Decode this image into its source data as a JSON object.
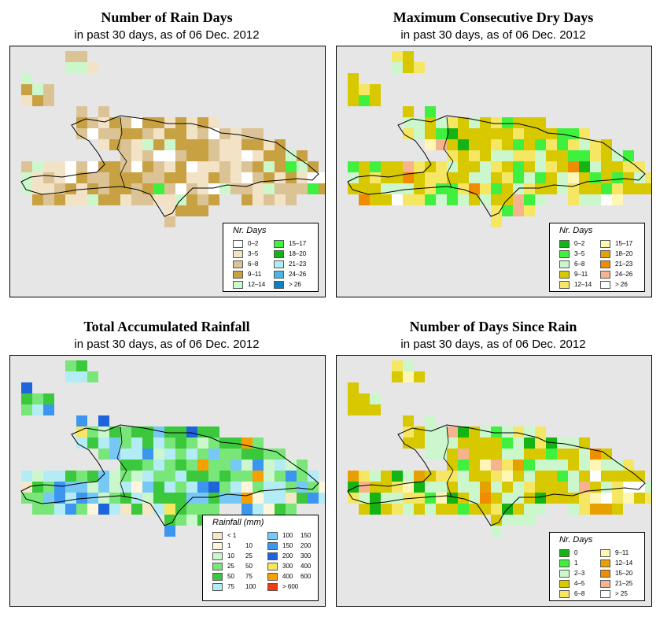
{
  "panels": [
    {
      "id": "rain_days",
      "title": "Number of Rain Days",
      "subtitle": "in past 30 days, as of  06 Dec. 2012",
      "legend_title": "Nr. Days",
      "legend": [
        {
          "label": "0–2",
          "color": "#ffffff"
        },
        {
          "label": "3–5",
          "color": "#f3e3c6"
        },
        {
          "label": "6–8",
          "color": "#dcc396"
        },
        {
          "label": "9–11",
          "color": "#c8a242"
        },
        {
          "label": "12–14",
          "color": "#ccf7cc"
        },
        {
          "label": "15–17",
          "color": "#3ff03f"
        },
        {
          "label": "18–20",
          "color": "#14b414"
        },
        {
          "label": "21–23",
          "color": "#b4ecf6"
        },
        {
          "label": "24–26",
          "color": "#4bb6e6"
        },
        {
          "label": "> 26",
          "color": "#0a82c8"
        }
      ]
    },
    {
      "id": "max_dry",
      "title": "Maximum Consecutive Dry Days",
      "subtitle": "in past 30 days, as of  06 Dec. 2012",
      "legend_title": "Nr. Days",
      "legend": [
        {
          "label": "0–2",
          "color": "#14b414"
        },
        {
          "label": "3–5",
          "color": "#3ff03f"
        },
        {
          "label": "6–8",
          "color": "#ccf7cc"
        },
        {
          "label": "9–11",
          "color": "#d7c800"
        },
        {
          "label": "12–14",
          "color": "#f5e664"
        },
        {
          "label": "15–17",
          "color": "#fff5b4"
        },
        {
          "label": "18–20",
          "color": "#e6a000"
        },
        {
          "label": "21–23",
          "color": "#f08c00"
        },
        {
          "label": "24–26",
          "color": "#f5b48c"
        },
        {
          "label": "> 26",
          "color": "#ffffff"
        }
      ]
    },
    {
      "id": "total_rain",
      "title": "Total Accumulated Rainfall",
      "subtitle": "in past 30 days, as of  06 Dec. 2012",
      "legend_title": "Rainfall (mm)",
      "legend": [
        {
          "label": "< 1",
          "color": "#f5e6c8"
        },
        {
          "label": "1",
          "label2": "10",
          "color": "#fff5dc"
        },
        {
          "label": "10",
          "label2": "25",
          "color": "#ccf7cc"
        },
        {
          "label": "25",
          "label2": "50",
          "color": "#78e678"
        },
        {
          "label": "50",
          "label2": "75",
          "color": "#3cc83c"
        },
        {
          "label": "75",
          "label2": "100",
          "color": "#b4ecf6"
        },
        {
          "label": "100",
          "label2": "150",
          "color": "#78c8f5"
        },
        {
          "label": "150",
          "label2": "200",
          "color": "#3c96f0"
        },
        {
          "label": "200",
          "label2": "300",
          "color": "#1e64dc"
        },
        {
          "label": "300",
          "label2": "400",
          "color": "#f5e664"
        },
        {
          "label": "400",
          "label2": "600",
          "color": "#f5a000"
        },
        {
          "label": "> 600",
          "color": "#f03c14"
        }
      ]
    },
    {
      "id": "since_rain",
      "title": "Number of Days Since Rain",
      "subtitle": "in past 30 days, as of  06 Dec. 2012",
      "legend_title": "Nr. Days",
      "legend": [
        {
          "label": "0",
          "color": "#14b414"
        },
        {
          "label": "1",
          "color": "#3ff03f"
        },
        {
          "label": "2–3",
          "color": "#ccf7cc"
        },
        {
          "label": "4–5",
          "color": "#d7c800"
        },
        {
          "label": "6–8",
          "color": "#f5e664"
        },
        {
          "label": "9–11",
          "color": "#fff5b4"
        },
        {
          "label": "12–14",
          "color": "#e6a000"
        },
        {
          "label": "15–20",
          "color": "#f08c00"
        },
        {
          "label": "21–25",
          "color": "#f5b48c"
        },
        {
          "label": "> 25",
          "color": "#ffffff"
        }
      ]
    }
  ]
}
